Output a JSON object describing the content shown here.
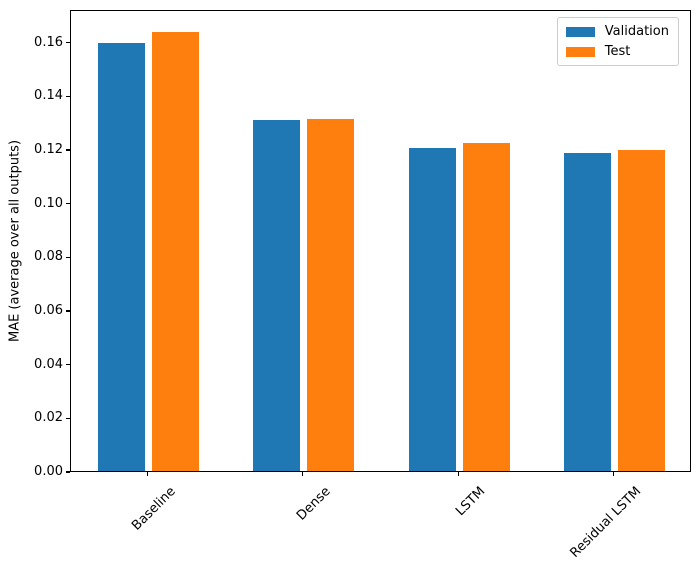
{
  "chart_data": {
    "type": "bar",
    "title": "",
    "xlabel": "",
    "ylabel": "MAE (average over all outputs)",
    "categories": [
      "Baseline",
      "Dense",
      "LSTM",
      "Residual LSTM"
    ],
    "series": [
      {
        "name": "Validation",
        "color": "#1f77b4",
        "values": [
          0.1595,
          0.131,
          0.1205,
          0.1185
        ]
      },
      {
        "name": "Test",
        "color": "#ff7f0e",
        "values": [
          0.1638,
          0.1312,
          0.1222,
          0.1196
        ]
      }
    ],
    "ylim": [
      0,
      0.1722
    ],
    "yticks": [
      0.0,
      0.02,
      0.04,
      0.06,
      0.08,
      0.1,
      0.12,
      0.14,
      0.16
    ],
    "ytick_labels": [
      "0.00",
      "0.02",
      "0.04",
      "0.06",
      "0.08",
      "0.10",
      "0.12",
      "0.14",
      "0.16"
    ],
    "xtick_rotation_deg": 45,
    "grid": false,
    "legend": {
      "position": "upper right",
      "entries": [
        "Validation",
        "Test"
      ]
    }
  }
}
